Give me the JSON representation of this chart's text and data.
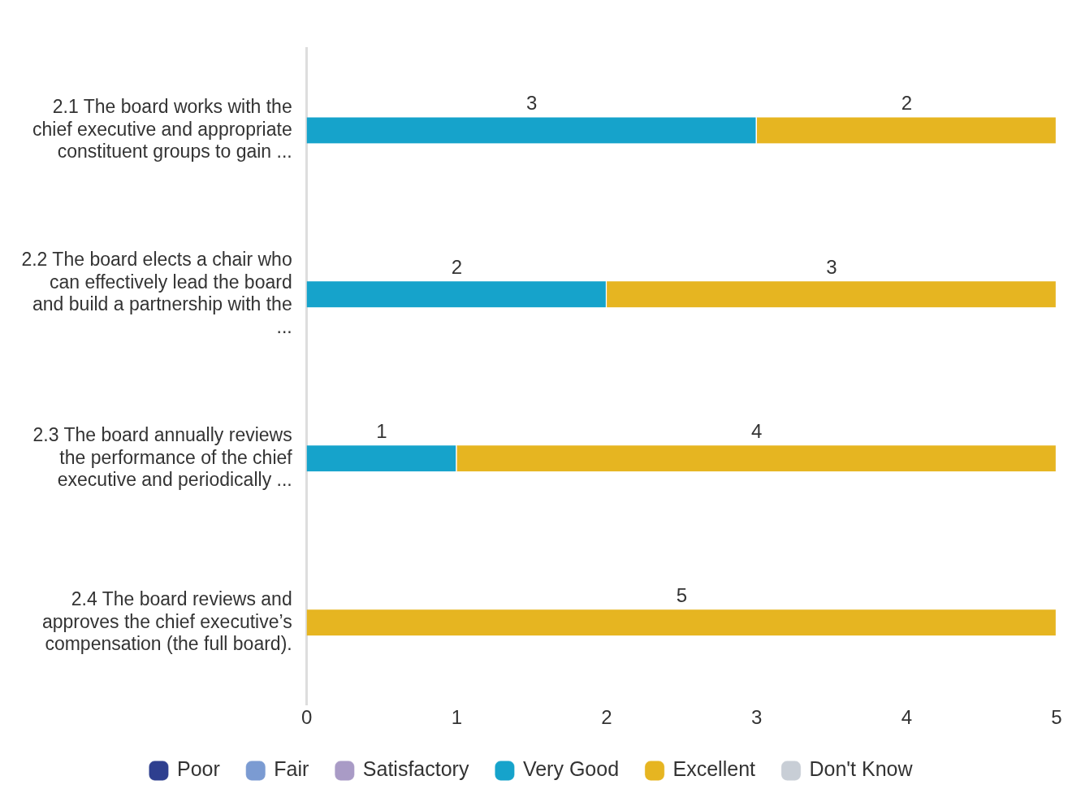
{
  "chart_data": {
    "type": "bar",
    "orientation": "horizontal",
    "stacked": true,
    "categories": [
      "2.1 The board works with the chief executive and appropriate constituent groups to gain ...",
      "2.2 The board elects a chair who can effectively lead the board and build a partnership with the ...",
      "2.3 The board annually reviews the performance of the chief executive and periodically ...",
      "2.4 The board reviews and approves the chief executive’s compensation (the full board)."
    ],
    "series": [
      {
        "name": "Poor",
        "color": "#2e3f8f",
        "values": [
          null,
          null,
          null,
          null
        ]
      },
      {
        "name": "Fair",
        "color": "#7b9bd2",
        "values": [
          null,
          null,
          null,
          null
        ]
      },
      {
        "name": "Satisfactory",
        "color": "#a99bc6",
        "values": [
          null,
          null,
          null,
          null
        ]
      },
      {
        "name": "Very Good",
        "color": "#16a3cb",
        "values": [
          3,
          2,
          1,
          null
        ]
      },
      {
        "name": "Excellent",
        "color": "#e6b521",
        "values": [
          2,
          3,
          4,
          5
        ]
      },
      {
        "name": "Don't Know",
        "color": "#c8ced6",
        "values": [
          null,
          null,
          null,
          null
        ]
      }
    ],
    "xlim": [
      0,
      5
    ],
    "xticks": [
      0,
      1,
      2,
      3,
      4,
      5
    ],
    "grid": false,
    "legend": "bottom",
    "data_labels": true
  }
}
